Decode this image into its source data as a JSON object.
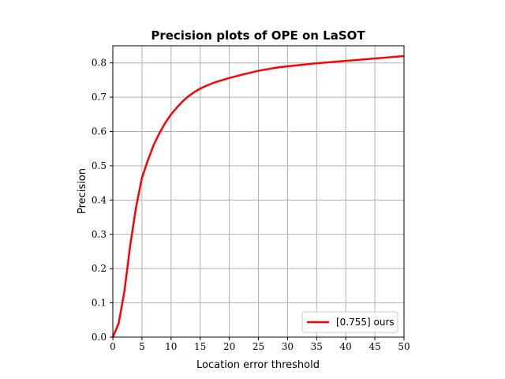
{
  "chart_data": {
    "type": "line",
    "title": "Precision plots of OPE on LaSOT",
    "xlabel": "Location error threshold",
    "ylabel": "Precision",
    "xlim": [
      0,
      50
    ],
    "ylim": [
      0,
      0.85
    ],
    "xticks": [
      0,
      5,
      10,
      15,
      20,
      25,
      30,
      35,
      40,
      45,
      50
    ],
    "yticks": [
      0.0,
      0.1,
      0.2,
      0.3,
      0.4,
      0.5,
      0.6,
      0.7,
      0.8
    ],
    "xtick_labels": [
      "0",
      "5",
      "10",
      "15",
      "20",
      "25",
      "30",
      "35",
      "40",
      "45",
      "50"
    ],
    "ytick_labels": [
      "0.0",
      "0.1",
      "0.2",
      "0.3",
      "0.4",
      "0.5",
      "0.6",
      "0.7",
      "0.8"
    ],
    "grid": true,
    "legend_position": "lower-right",
    "series": [
      {
        "name": "[0.755] ours",
        "color": "#ff0000",
        "x": [
          0,
          1,
          2,
          3,
          4,
          5,
          6,
          7,
          8,
          9,
          10,
          11,
          12,
          13,
          14,
          15,
          16,
          17,
          18,
          20,
          22,
          25,
          28,
          30,
          35,
          40,
          45,
          50
        ],
        "y": [
          0.0,
          0.04,
          0.135,
          0.27,
          0.38,
          0.465,
          0.515,
          0.56,
          0.595,
          0.625,
          0.65,
          0.67,
          0.688,
          0.703,
          0.715,
          0.725,
          0.733,
          0.74,
          0.746,
          0.756,
          0.765,
          0.777,
          0.786,
          0.79,
          0.799,
          0.806,
          0.813,
          0.82
        ]
      }
    ]
  }
}
